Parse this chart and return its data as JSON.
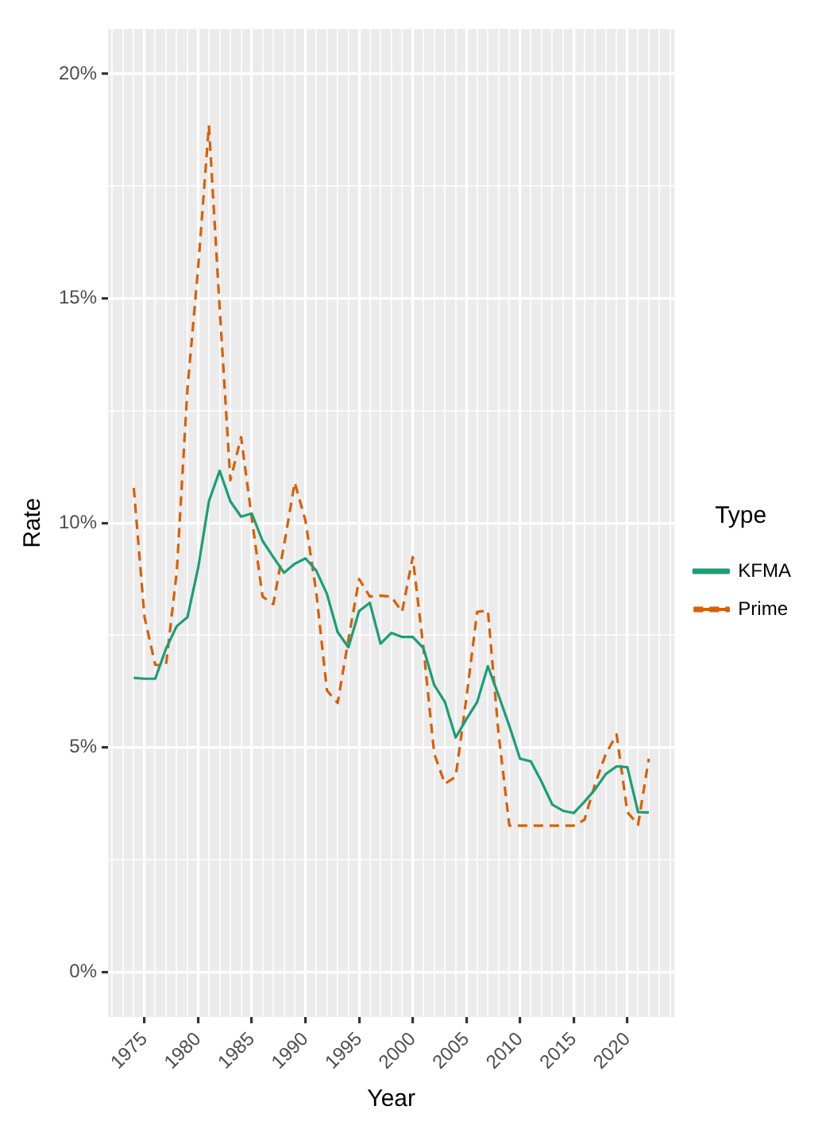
{
  "chart_data": {
    "type": "line",
    "xlabel": "Year",
    "ylabel": "Rate",
    "legend_title": "Type",
    "legend": "right",
    "grid": true,
    "marker": "none",
    "x": [
      1974,
      1975,
      1976,
      1977,
      1978,
      1979,
      1980,
      1981,
      1982,
      1983,
      1984,
      1985,
      1986,
      1987,
      1988,
      1989,
      1990,
      1991,
      1992,
      1993,
      1994,
      1995,
      1996,
      1997,
      1998,
      1999,
      2000,
      2001,
      2002,
      2003,
      2004,
      2005,
      2006,
      2007,
      2008,
      2009,
      2010,
      2011,
      2012,
      2013,
      2014,
      2015,
      2016,
      2017,
      2018,
      2019,
      2020,
      2021,
      2022
    ],
    "xlim": [
      1971.6,
      2024.4
    ],
    "xticks": [
      {
        "value": 1972,
        "label": null
      },
      {
        "value": 1973,
        "label": null
      },
      {
        "value": 1974,
        "label": null
      },
      1975,
      {
        "value": 1976,
        "label": null
      },
      {
        "value": 1977,
        "label": null
      },
      {
        "value": 1978,
        "label": null
      },
      {
        "value": 1979,
        "label": null
      },
      1980,
      {
        "value": 1981,
        "label": null
      },
      {
        "value": 1982,
        "label": null
      },
      {
        "value": 1983,
        "label": null
      },
      {
        "value": 1984,
        "label": null
      },
      1985,
      {
        "value": 1986,
        "label": null
      },
      {
        "value": 1987,
        "label": null
      },
      {
        "value": 1988,
        "label": null
      },
      {
        "value": 1989,
        "label": null
      },
      1990,
      {
        "value": 1991,
        "label": null
      },
      {
        "value": 1992,
        "label": null
      },
      {
        "value": 1993,
        "label": null
      },
      {
        "value": 1994,
        "label": null
      },
      1995,
      {
        "value": 1996,
        "label": null
      },
      {
        "value": 1997,
        "label": null
      },
      {
        "value": 1998,
        "label": null
      },
      {
        "value": 1999,
        "label": null
      },
      2000,
      {
        "value": 2001,
        "label": null
      },
      {
        "value": 2002,
        "label": null
      },
      {
        "value": 2003,
        "label": null
      },
      {
        "value": 2004,
        "label": null
      },
      2005,
      {
        "value": 2006,
        "label": null
      },
      {
        "value": 2007,
        "label": null
      },
      {
        "value": 2008,
        "label": null
      },
      {
        "value": 2009,
        "label": null
      },
      2010,
      {
        "value": 2011,
        "label": null
      },
      {
        "value": 2012,
        "label": null
      },
      {
        "value": 2013,
        "label": null
      },
      {
        "value": 2014,
        "label": null
      },
      2015,
      {
        "value": 2016,
        "label": null
      },
      {
        "value": 2017,
        "label": null
      },
      {
        "value": 2018,
        "label": null
      },
      {
        "value": 2019,
        "label": null
      },
      2020,
      {
        "value": 2021,
        "label": null
      },
      {
        "value": 2022,
        "label": null
      },
      {
        "value": 2023,
        "label": null
      },
      {
        "value": 2024,
        "label": null
      }
    ],
    "ylim": [
      -1,
      21
    ],
    "yticks": [
      {
        "value": 0,
        "label": "0%"
      },
      {
        "value": 2.5,
        "label": null
      },
      {
        "value": 5,
        "label": "5%"
      },
      {
        "value": 7.5,
        "label": null
      },
      {
        "value": 10,
        "label": "10%"
      },
      {
        "value": 12.5,
        "label": null
      },
      {
        "value": 15,
        "label": "15%"
      },
      {
        "value": 17.5,
        "label": null
      },
      {
        "value": 20,
        "label": "20%"
      }
    ],
    "series": [
      {
        "name": "KFMA",
        "color": "#1b9e77",
        "line_style": "solid",
        "values": [
          6.55,
          6.53,
          6.53,
          7.2,
          7.7,
          7.9,
          9.0,
          10.48,
          11.16,
          10.48,
          10.14,
          10.21,
          9.6,
          9.24,
          8.89,
          9.09,
          9.21,
          8.94,
          8.42,
          7.57,
          7.23,
          8.04,
          8.22,
          7.31,
          7.55,
          7.46,
          7.46,
          7.21,
          6.39,
          6.01,
          5.22,
          5.63,
          6.01,
          6.81,
          6.16,
          5.48,
          4.75,
          4.69,
          4.24,
          3.73,
          3.59,
          3.54,
          3.79,
          4.07,
          4.41,
          4.58,
          4.56,
          3.56,
          3.55
        ]
      },
      {
        "name": "Prime",
        "color": "#d95f02",
        "line_style": "dashed",
        "values": [
          10.78,
          7.9,
          6.84,
          6.83,
          8.9,
          12.98,
          15.69,
          18.85,
          14.8,
          10.95,
          11.91,
          10.1,
          8.36,
          8.19,
          9.5,
          10.9,
          10.05,
          8.47,
          6.27,
          5.99,
          7.4,
          8.75,
          8.36,
          8.38,
          8.36,
          8.02,
          9.24,
          7.2,
          4.86,
          4.19,
          4.35,
          6.1,
          8.02,
          8.05,
          5.3,
          3.26,
          3.26,
          3.26,
          3.26,
          3.26,
          3.26,
          3.26,
          3.39,
          4.19,
          4.86,
          5.29,
          3.56,
          3.28,
          4.75
        ]
      }
    ]
  }
}
